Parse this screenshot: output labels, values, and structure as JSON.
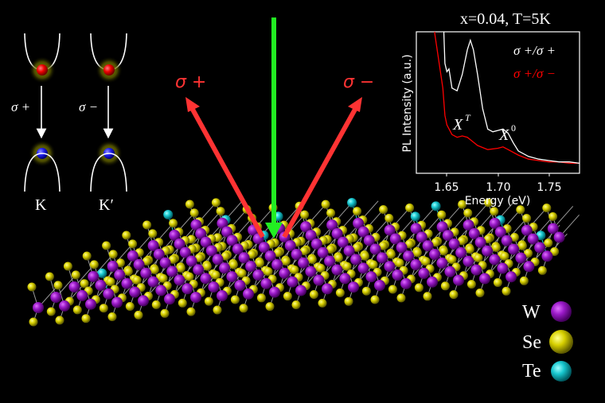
{
  "valley_diagram": {
    "left": {
      "transition_label": "σ +",
      "valley_label": "K"
    },
    "right": {
      "transition_label": "σ −",
      "valley_label": "K′"
    },
    "colors": {
      "electron": "#ff1a1a",
      "hole": "#2b2bff",
      "glow": "#8a8a00",
      "band": "#ffffff"
    }
  },
  "beams": {
    "excitation_color": "#22ee22",
    "emission_color": "#ff3333",
    "left_label": "σ +",
    "right_label": "σ −"
  },
  "inset": {
    "title": "x=0.04, T=5K",
    "legend": [
      {
        "label": "σ +/σ +",
        "color": "#ffffff"
      },
      {
        "label": "σ +/σ −",
        "color": "#ff0000"
      }
    ],
    "annotations": {
      "trion": "X",
      "trion_sup": "T",
      "exciton": "X",
      "exciton_sup": "0"
    },
    "xlabel": "Energy (eV)",
    "ylabel": "PL Intensity (a.u.)",
    "xticks": [
      "1.65",
      "1.70",
      "1.75"
    ]
  },
  "legend": {
    "items": [
      {
        "label": "W",
        "color": "#9a1ac8"
      },
      {
        "label": "Se",
        "color": "#d8d000"
      },
      {
        "label": "Te",
        "color": "#18c8d0"
      }
    ]
  },
  "chart_data": {
    "type": "line",
    "title": "x=0.04, T=5K",
    "xlabel": "Energy (eV)",
    "ylabel": "PL Intensity (a.u.)",
    "xlim": [
      1.62,
      1.78
    ],
    "ylim": [
      0,
      1
    ],
    "xticks": [
      1.65,
      1.7,
      1.75
    ],
    "grid": false,
    "legend_position": "upper right",
    "series": [
      {
        "name": "σ +/σ +",
        "color": "#ffffff",
        "x": [
          1.647,
          1.648,
          1.65,
          1.652,
          1.655,
          1.66,
          1.665,
          1.67,
          1.673,
          1.676,
          1.68,
          1.685,
          1.69,
          1.695,
          1.7,
          1.705,
          1.71,
          1.715,
          1.72,
          1.73,
          1.74,
          1.75,
          1.76,
          1.77,
          1.78
        ],
        "values": [
          1.0,
          0.78,
          0.72,
          0.74,
          0.6,
          0.58,
          0.7,
          0.88,
          0.95,
          0.88,
          0.7,
          0.45,
          0.3,
          0.28,
          0.29,
          0.3,
          0.27,
          0.2,
          0.14,
          0.1,
          0.08,
          0.07,
          0.06,
          0.06,
          0.05
        ]
      },
      {
        "name": "σ +/σ −",
        "color": "#ff0000",
        "x": [
          1.638,
          1.642,
          1.646,
          1.648,
          1.65,
          1.655,
          1.66,
          1.665,
          1.67,
          1.675,
          1.68,
          1.69,
          1.7,
          1.705,
          1.71,
          1.72,
          1.73,
          1.74,
          1.75,
          1.76,
          1.77,
          1.78
        ],
        "values": [
          1.0,
          0.8,
          0.6,
          0.4,
          0.33,
          0.26,
          0.24,
          0.25,
          0.24,
          0.21,
          0.18,
          0.15,
          0.16,
          0.17,
          0.15,
          0.11,
          0.08,
          0.07,
          0.06,
          0.06,
          0.05,
          0.05
        ]
      }
    ],
    "annotations": [
      {
        "text": "X^T",
        "x": 1.665,
        "y": 0.42
      },
      {
        "text": "X^0",
        "x": 1.71,
        "y": 0.36
      }
    ]
  }
}
